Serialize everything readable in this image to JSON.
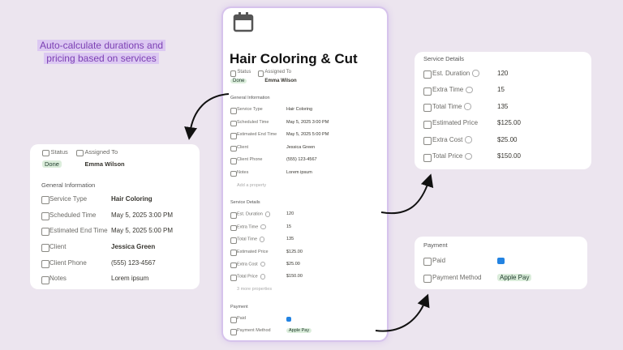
{
  "tagline": [
    "Auto-calculate durations and",
    "pricing based on services"
  ],
  "page": {
    "title": "Hair Coloring & Cut",
    "status": {
      "label": "Status",
      "value": "Done"
    },
    "assigned": {
      "label": "Assigned To",
      "value": "Emma Wilson"
    },
    "general": {
      "heading": "General Information",
      "add": "Add a property",
      "rows": [
        {
          "label": "Service Type",
          "value": "Hair Coloring"
        },
        {
          "label": "Scheduled Time",
          "value": "May 5, 2025 3:00 PM"
        },
        {
          "label": "Estimated End Time",
          "value": "May 5, 2025 5:00 PM"
        },
        {
          "label": "Client",
          "value": "Jessica Green"
        },
        {
          "label": "Client Phone",
          "value": "(555) 123-4567"
        },
        {
          "label": "Notes",
          "value": "Lorem ipsum"
        }
      ]
    },
    "service": {
      "heading": "Service Details",
      "more": "3 more properties",
      "rows": [
        {
          "label": "Est. Duration",
          "value": "120"
        },
        {
          "label": "Extra Time",
          "value": "15"
        },
        {
          "label": "Total Time",
          "value": "135"
        },
        {
          "label": "Estimated Price",
          "value": "$125.00"
        },
        {
          "label": "Extra Cost",
          "value": "$25.00"
        },
        {
          "label": "Total Price",
          "value": "$150.00"
        }
      ]
    },
    "payment": {
      "heading": "Payment",
      "rows": [
        {
          "label": "Paid",
          "checked": true
        },
        {
          "label": "Payment Method",
          "value": "Apple Pay"
        }
      ]
    }
  }
}
